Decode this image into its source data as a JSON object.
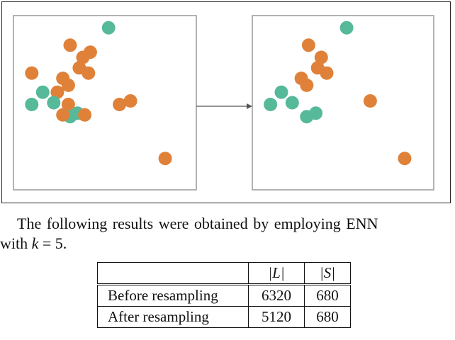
{
  "figure": {
    "colors": {
      "majority": "#e0813a",
      "minority": "#55b99a",
      "panel_border": "#9a9a9a",
      "arrow": "#555555"
    },
    "before_panel": {
      "points": [
        {
          "cls": "minority",
          "x": 5.2,
          "y": 9.3
        },
        {
          "cls": "majority",
          "x": 3.1,
          "y": 8.3
        },
        {
          "cls": "majority",
          "x": 4.2,
          "y": 7.9
        },
        {
          "cls": "majority",
          "x": 3.8,
          "y": 7.6
        },
        {
          "cls": "majority",
          "x": 1.0,
          "y": 6.7
        },
        {
          "cls": "majority",
          "x": 3.6,
          "y": 7.0
        },
        {
          "cls": "majority",
          "x": 4.1,
          "y": 6.7
        },
        {
          "cls": "majority",
          "x": 2.7,
          "y": 6.4
        },
        {
          "cls": "majority",
          "x": 3.0,
          "y": 6.0
        },
        {
          "cls": "majority",
          "x": 2.4,
          "y": 5.6
        },
        {
          "cls": "minority",
          "x": 1.6,
          "y": 5.6
        },
        {
          "cls": "minority",
          "x": 2.2,
          "y": 5.0
        },
        {
          "cls": "minority",
          "x": 1.0,
          "y": 4.9
        },
        {
          "cls": "majority",
          "x": 3.0,
          "y": 4.9
        },
        {
          "cls": "minority",
          "x": 3.5,
          "y": 4.4
        },
        {
          "cls": "minority",
          "x": 3.1,
          "y": 4.2
        },
        {
          "cls": "majority",
          "x": 2.7,
          "y": 4.3
        },
        {
          "cls": "majority",
          "x": 3.9,
          "y": 4.3
        },
        {
          "cls": "majority",
          "x": 5.8,
          "y": 4.9
        },
        {
          "cls": "majority",
          "x": 6.4,
          "y": 5.1
        },
        {
          "cls": "majority",
          "x": 8.3,
          "y": 1.8
        }
      ]
    },
    "after_panel": {
      "points": [
        {
          "cls": "minority",
          "x": 5.2,
          "y": 9.3
        },
        {
          "cls": "majority",
          "x": 3.1,
          "y": 8.3
        },
        {
          "cls": "majority",
          "x": 3.8,
          "y": 7.6
        },
        {
          "cls": "majority",
          "x": 3.6,
          "y": 7.0
        },
        {
          "cls": "majority",
          "x": 4.1,
          "y": 6.7
        },
        {
          "cls": "majority",
          "x": 2.7,
          "y": 6.4
        },
        {
          "cls": "majority",
          "x": 3.0,
          "y": 6.0
        },
        {
          "cls": "minority",
          "x": 1.6,
          "y": 5.6
        },
        {
          "cls": "minority",
          "x": 2.2,
          "y": 5.0
        },
        {
          "cls": "minority",
          "x": 1.0,
          "y": 4.9
        },
        {
          "cls": "minority",
          "x": 3.5,
          "y": 4.4
        },
        {
          "cls": "minority",
          "x": 3.0,
          "y": 4.2
        },
        {
          "cls": "majority",
          "x": 6.5,
          "y": 5.1
        },
        {
          "cls": "majority",
          "x": 8.4,
          "y": 1.8
        }
      ]
    }
  },
  "caption": {
    "line1": "The following results were obtained by employing ENN",
    "line2_prefix": "with ",
    "line2_var": "k",
    "line2_suffix": " = 5."
  },
  "table": {
    "header_col1": "|L|",
    "header_col2": "|S|",
    "rows": [
      {
        "label": "Before resampling",
        "L": "6320",
        "S": "680"
      },
      {
        "label": "After resampling",
        "L": "5120",
        "S": "680"
      }
    ]
  }
}
